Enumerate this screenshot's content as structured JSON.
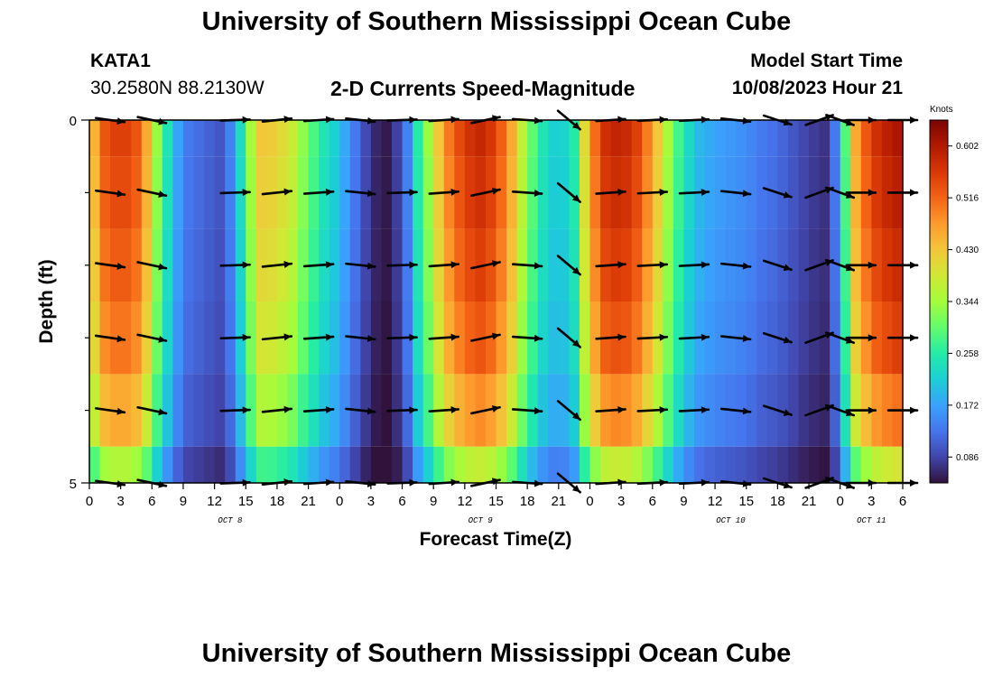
{
  "header": {
    "title": "University of Southern Mississippi Ocean Cube",
    "station": "KATA1",
    "coords": "30.2580N  88.2130W",
    "subtitle": "2-D Currents Speed-Magnitude",
    "model_label": "Model Start Time",
    "model_time": "10/08/2023 Hour 21"
  },
  "footer": {
    "title": "University of Southern Mississippi Ocean Cube"
  },
  "colors": {
    "scale": [
      "#30123b",
      "#4145ab",
      "#4675ed",
      "#39a2fc",
      "#1bcfd4",
      "#24eca6",
      "#61fc6c",
      "#a4fc3b",
      "#d1e834",
      "#f3c63a",
      "#fe9b2d",
      "#f36315",
      "#d93806",
      "#b11901",
      "#7a0403"
    ],
    "arrow": "#000000"
  },
  "chart_data": {
    "type": "heatmap",
    "title": "2-D Currents Speed-Magnitude",
    "xlabel": "Forecast Time(Z)",
    "ylabel": "Depth (ft)",
    "x_ticks": [
      "0",
      "3",
      "6",
      "9",
      "12",
      "15",
      "18",
      "21",
      "0",
      "3",
      "6",
      "9",
      "12",
      "15",
      "18",
      "21",
      "0",
      "3",
      "6",
      "9",
      "12",
      "15",
      "18",
      "21",
      "0",
      "3",
      "6"
    ],
    "date_labels": [
      {
        "label": "OCT 8",
        "tick_index": 4.5
      },
      {
        "label": "OCT 9",
        "tick_index": 12.5
      },
      {
        "label": "OCT 10",
        "tick_index": 20.5
      },
      {
        "label": "OCT 11",
        "tick_index": 25
      }
    ],
    "y_range": [
      0,
      5
    ],
    "y_tick_labels": {
      "0": "0",
      "5": "5"
    },
    "y_minor_ticks": [
      1,
      2,
      3,
      4
    ],
    "hours_start": 0,
    "hours_end": 78,
    "depth_bins": 5,
    "colorbar": {
      "unit": "Knots",
      "min": 0.043,
      "max": 0.645,
      "ticks": [
        0.086,
        0.172,
        0.258,
        0.344,
        0.43,
        0.516,
        0.602
      ],
      "tick_labels": [
        "0.086",
        "0.172",
        "0.258",
        "0.344",
        "0.430",
        "0.516",
        "0.602"
      ]
    },
    "speed_profile": {
      "hours": [
        0,
        1.5,
        3,
        4.5,
        5.5,
        6.5,
        7.5,
        8.5,
        9.5,
        12.5,
        14,
        15,
        16.5,
        18,
        19.5,
        21,
        22.5,
        24,
        25,
        26.5,
        27.5,
        28.5,
        29.5,
        30.5,
        31.5,
        33,
        34,
        36,
        37.5,
        39,
        40.5,
        42,
        43.5,
        45,
        46.5,
        48,
        49.5,
        51,
        52.5,
        54,
        55.5,
        57,
        58.5,
        60,
        61.5,
        63,
        64.5,
        66,
        67.5,
        69,
        70.5,
        71,
        72,
        73.5,
        75,
        76.5,
        78
      ],
      "speeds": [
        0.4,
        0.52,
        0.55,
        0.52,
        0.45,
        0.33,
        0.24,
        0.17,
        0.13,
        0.1,
        0.16,
        0.3,
        0.42,
        0.41,
        0.37,
        0.3,
        0.24,
        0.2,
        0.15,
        0.09,
        0.06,
        0.05,
        0.08,
        0.14,
        0.25,
        0.37,
        0.47,
        0.55,
        0.57,
        0.54,
        0.45,
        0.32,
        0.24,
        0.2,
        0.25,
        0.47,
        0.56,
        0.58,
        0.54,
        0.46,
        0.34,
        0.24,
        0.19,
        0.17,
        0.16,
        0.15,
        0.13,
        0.12,
        0.1,
        0.08,
        0.07,
        0.06,
        0.2,
        0.45,
        0.55,
        0.58,
        0.6
      ]
    },
    "depth_factors": [
      1.02,
      1.0,
      0.97,
      0.93,
      0.85,
      0.66
    ],
    "arrow_hours": [
      2,
      6,
      14,
      18,
      22,
      26,
      30,
      34,
      38,
      42,
      46,
      50,
      54,
      58,
      62,
      66,
      70,
      72,
      74,
      78
    ],
    "arrow_dirs_deg": [
      -8,
      -12,
      2,
      6,
      4,
      -6,
      2,
      4,
      12,
      -4,
      -40,
      4,
      3,
      3,
      -6,
      -18,
      20,
      -20,
      0,
      0
    ],
    "arrow_scale_ft_per_knot": 1
  }
}
